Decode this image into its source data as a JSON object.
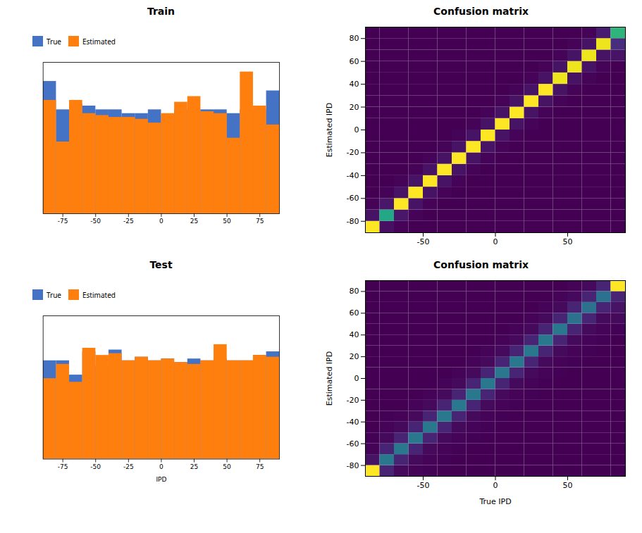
{
  "chart_data": [
    {
      "type": "histogram",
      "title": "Train",
      "bins": [
        -90,
        -80,
        -70,
        -60,
        -50,
        -40,
        -30,
        -20,
        -10,
        0,
        10,
        20,
        30,
        40,
        50,
        60,
        70,
        80,
        90
      ],
      "series": [
        {
          "name": "True",
          "color": "#4472c4",
          "values": [
            7.0,
            5.5,
            5.8,
            5.7,
            5.5,
            5.5,
            5.3,
            5.3,
            5.5,
            5.2,
            5.5,
            5.5,
            5.5,
            5.5,
            5.3,
            5.5,
            5.5,
            6.5
          ]
        },
        {
          "name": "Estimated",
          "color": "#ff7f0e",
          "values": [
            6.0,
            3.8,
            6.0,
            5.3,
            5.2,
            5.1,
            5.1,
            5.0,
            4.8,
            5.3,
            5.9,
            6.2,
            5.4,
            5.3,
            4.0,
            7.5,
            5.7,
            4.7
          ]
        }
      ],
      "xlim": [
        -90,
        90
      ],
      "xticks": [
        -75,
        -50,
        -25,
        0,
        25,
        50,
        75
      ],
      "ylim": [
        0,
        8
      ],
      "yticks": [],
      "tick_labels": "x",
      "legend": "upper left"
    },
    {
      "type": "heatmap",
      "title": "Confusion matrix",
      "ylabel": "Estimated IPD",
      "bins": [
        -90,
        -80,
        -70,
        -60,
        -50,
        -40,
        -30,
        -20,
        -10,
        0,
        10,
        20,
        30,
        40,
        50,
        60,
        70,
        80,
        90
      ],
      "xlim": [
        -90,
        90
      ],
      "xticks": [
        -50,
        0,
        50
      ],
      "ylim": [
        -90,
        90
      ],
      "yticks": [
        -80,
        -60,
        -40,
        -20,
        0,
        20,
        40,
        60,
        80
      ],
      "cells": [
        [
          200,
          10,
          2,
          0,
          0,
          0,
          0,
          0,
          0,
          0,
          0,
          0,
          0,
          0,
          0,
          0,
          0,
          0
        ],
        [
          8,
          120,
          12,
          2,
          0,
          0,
          0,
          0,
          0,
          0,
          0,
          0,
          0,
          0,
          0,
          0,
          0,
          0
        ],
        [
          2,
          12,
          200,
          10,
          2,
          0,
          0,
          0,
          0,
          0,
          0,
          0,
          0,
          0,
          0,
          0,
          0,
          0
        ],
        [
          0,
          2,
          10,
          200,
          10,
          2,
          0,
          0,
          0,
          0,
          0,
          0,
          0,
          0,
          0,
          0,
          0,
          0
        ],
        [
          0,
          0,
          2,
          10,
          200,
          10,
          2,
          0,
          0,
          0,
          0,
          0,
          0,
          0,
          0,
          0,
          0,
          0
        ],
        [
          0,
          0,
          0,
          2,
          10,
          200,
          10,
          2,
          0,
          0,
          0,
          0,
          0,
          0,
          0,
          0,
          0,
          0
        ],
        [
          0,
          0,
          0,
          0,
          2,
          10,
          200,
          10,
          2,
          0,
          0,
          0,
          0,
          0,
          0,
          0,
          0,
          0
        ],
        [
          0,
          0,
          0,
          0,
          0,
          2,
          10,
          200,
          10,
          2,
          0,
          0,
          0,
          0,
          0,
          0,
          0,
          0
        ],
        [
          0,
          0,
          0,
          0,
          0,
          0,
          2,
          10,
          200,
          10,
          2,
          0,
          0,
          0,
          0,
          0,
          0,
          0
        ],
        [
          0,
          0,
          0,
          0,
          0,
          0,
          0,
          2,
          10,
          200,
          10,
          2,
          0,
          0,
          0,
          0,
          0,
          0
        ],
        [
          0,
          0,
          0,
          0,
          0,
          0,
          0,
          0,
          2,
          10,
          200,
          10,
          2,
          0,
          0,
          0,
          0,
          0
        ],
        [
          0,
          0,
          0,
          0,
          0,
          0,
          0,
          0,
          0,
          2,
          10,
          200,
          10,
          2,
          0,
          0,
          0,
          0
        ],
        [
          0,
          0,
          0,
          0,
          0,
          0,
          0,
          0,
          0,
          0,
          2,
          10,
          200,
          10,
          2,
          0,
          0,
          0
        ],
        [
          0,
          0,
          0,
          0,
          0,
          0,
          0,
          0,
          0,
          0,
          0,
          2,
          10,
          195,
          10,
          2,
          0,
          0
        ],
        [
          0,
          0,
          0,
          0,
          0,
          0,
          0,
          0,
          0,
          0,
          0,
          0,
          2,
          10,
          195,
          10,
          2,
          0
        ],
        [
          0,
          0,
          0,
          0,
          0,
          0,
          0,
          0,
          0,
          0,
          0,
          0,
          0,
          2,
          10,
          195,
          10,
          2
        ],
        [
          0,
          0,
          0,
          0,
          0,
          0,
          0,
          0,
          0,
          0,
          0,
          0,
          0,
          0,
          2,
          10,
          195,
          15
        ],
        [
          0,
          0,
          0,
          0,
          0,
          0,
          0,
          0,
          0,
          0,
          0,
          0,
          0,
          0,
          0,
          10,
          25,
          130
        ]
      ]
    },
    {
      "type": "histogram",
      "title": "Test",
      "xlabel": "IPD",
      "bins": [
        -90,
        -80,
        -70,
        -60,
        -50,
        -40,
        -30,
        -20,
        -10,
        0,
        10,
        20,
        30,
        40,
        50,
        60,
        70,
        80,
        90
      ],
      "series": [
        {
          "name": "True",
          "color": "#4472c4",
          "values": [
            5.5,
            5.5,
            4.7,
            6.0,
            5.2,
            6.1,
            5.5,
            5.7,
            5.5,
            5.6,
            5.4,
            5.6,
            5.5,
            5.6,
            5.5,
            5.5,
            5.8,
            6.0
          ]
        },
        {
          "name": "Estimated",
          "color": "#ff7f0e",
          "values": [
            4.5,
            5.3,
            4.3,
            6.2,
            5.8,
            5.9,
            5.5,
            5.7,
            5.5,
            5.6,
            5.4,
            5.3,
            5.5,
            6.4,
            5.5,
            5.5,
            5.8,
            5.7
          ]
        }
      ],
      "xlim": [
        -90,
        90
      ],
      "xticks": [
        -75,
        -50,
        -25,
        0,
        25,
        50,
        75
      ],
      "ylim": [
        0,
        8
      ],
      "yticks": [],
      "tick_labels": "x",
      "legend": "upper left"
    },
    {
      "type": "heatmap",
      "title": "Confusion matrix",
      "ylabel": "Estimated IPD",
      "xlabel": "True IPD",
      "bins": [
        -90,
        -80,
        -70,
        -60,
        -50,
        -40,
        -30,
        -20,
        -10,
        0,
        10,
        20,
        30,
        40,
        50,
        60,
        70,
        80,
        90
      ],
      "xlim": [
        -90,
        90
      ],
      "xticks": [
        -50,
        0,
        50
      ],
      "ylim": [
        -90,
        90
      ],
      "yticks": [
        -80,
        -60,
        -40,
        -20,
        0,
        20,
        40,
        60,
        80
      ],
      "cells": [
        [
          200,
          10,
          2,
          1,
          0,
          0,
          0,
          0,
          0,
          0,
          0,
          0,
          0,
          0,
          0,
          0,
          0,
          0
        ],
        [
          20,
          80,
          20,
          5,
          2,
          1,
          0,
          0,
          0,
          0,
          0,
          0,
          0,
          0,
          0,
          0,
          0,
          0
        ],
        [
          5,
          20,
          80,
          20,
          5,
          2,
          0,
          0,
          0,
          0,
          0,
          0,
          0,
          0,
          0,
          0,
          0,
          0
        ],
        [
          2,
          5,
          20,
          80,
          20,
          5,
          2,
          0,
          0,
          0,
          0,
          0,
          0,
          0,
          0,
          0,
          0,
          0
        ],
        [
          1,
          2,
          5,
          20,
          80,
          20,
          5,
          2,
          0,
          0,
          0,
          0,
          0,
          0,
          0,
          0,
          0,
          0
        ],
        [
          0,
          1,
          2,
          5,
          20,
          80,
          20,
          5,
          2,
          0,
          0,
          0,
          0,
          0,
          0,
          0,
          0,
          0
        ],
        [
          0,
          0,
          1,
          2,
          5,
          20,
          80,
          20,
          5,
          2,
          0,
          0,
          0,
          0,
          0,
          0,
          0,
          0
        ],
        [
          0,
          0,
          0,
          1,
          2,
          5,
          20,
          80,
          20,
          5,
          2,
          0,
          0,
          0,
          0,
          0,
          0,
          0
        ],
        [
          0,
          0,
          0,
          0,
          1,
          2,
          5,
          20,
          80,
          20,
          5,
          2,
          0,
          0,
          0,
          0,
          0,
          0
        ],
        [
          0,
          0,
          0,
          0,
          0,
          1,
          2,
          5,
          20,
          80,
          20,
          5,
          2,
          0,
          0,
          0,
          0,
          0
        ],
        [
          0,
          0,
          0,
          0,
          0,
          0,
          1,
          2,
          5,
          20,
          80,
          20,
          5,
          2,
          0,
          0,
          0,
          0
        ],
        [
          0,
          0,
          0,
          0,
          0,
          0,
          0,
          1,
          2,
          5,
          20,
          80,
          20,
          5,
          2,
          0,
          0,
          0
        ],
        [
          0,
          0,
          0,
          0,
          0,
          0,
          0,
          0,
          1,
          2,
          5,
          20,
          80,
          20,
          5,
          2,
          0,
          0
        ],
        [
          0,
          0,
          0,
          0,
          0,
          0,
          0,
          0,
          0,
          1,
          2,
          5,
          20,
          80,
          20,
          5,
          2,
          0
        ],
        [
          0,
          0,
          0,
          0,
          0,
          0,
          0,
          0,
          0,
          0,
          1,
          2,
          5,
          20,
          75,
          20,
          5,
          2
        ],
        [
          0,
          0,
          0,
          0,
          0,
          0,
          0,
          0,
          0,
          0,
          0,
          1,
          2,
          5,
          20,
          75,
          20,
          5
        ],
        [
          0,
          0,
          0,
          0,
          0,
          0,
          0,
          0,
          0,
          0,
          0,
          0,
          1,
          2,
          5,
          20,
          75,
          20
        ],
        [
          0,
          0,
          0,
          0,
          0,
          0,
          0,
          0,
          0,
          0,
          0,
          0,
          0,
          1,
          5,
          10,
          20,
          200
        ]
      ]
    }
  ]
}
